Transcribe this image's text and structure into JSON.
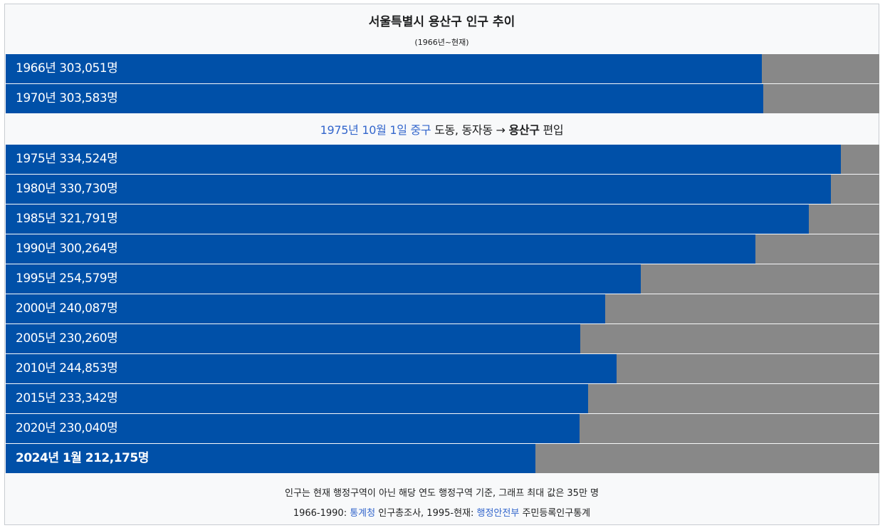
{
  "chart_data": {
    "type": "bar",
    "orientation": "horizontal",
    "title": "서울특별시 용산구 인구 추이",
    "subtitle": "(1966년~현재)",
    "xlim": [
      0,
      350000
    ],
    "bar_color": "#0050a8",
    "track_color": "#888888",
    "categories": [
      "1966년",
      "1970년",
      "1975년",
      "1980년",
      "1985년",
      "1990년",
      "1995년",
      "2000년",
      "2005년",
      "2010년",
      "2015년",
      "2020년",
      "2024년 1월"
    ],
    "values": [
      303051,
      303583,
      334524,
      330730,
      321791,
      300264,
      254579,
      240087,
      230260,
      244853,
      233342,
      230040,
      212175
    ],
    "bar_labels": [
      "1966년 303,051명",
      "1970년 303,583명",
      "1975년 334,524명",
      "1980년 330,730명",
      "1985년 321,791명",
      "1990년 300,264명",
      "1995년 254,579명",
      "2000년 240,087명",
      "2005년 230,260명",
      "2010년 244,853명",
      "2015년 233,342명",
      "2020년 230,040명",
      "2024년 1월 212,175명"
    ],
    "annotation": {
      "date_link": "1975년 10월 1일",
      "district_link": "중구",
      "text_mid": " 도동, 동자동 → ",
      "district_bold": "용산구",
      "text_end": " 편입"
    }
  },
  "footer": {
    "note": "인구는 현재 행정구역이 아닌 해당 연도 행정구역 기준, 그래프 최대 값은 35만 명",
    "source_prefix": "1966-1990: ",
    "source_link1": "통계청",
    "source_mid": " 인구총조사, 1995-현재: ",
    "source_link2": "행정안전부",
    "source_end": " 주민등록인구통계"
  }
}
